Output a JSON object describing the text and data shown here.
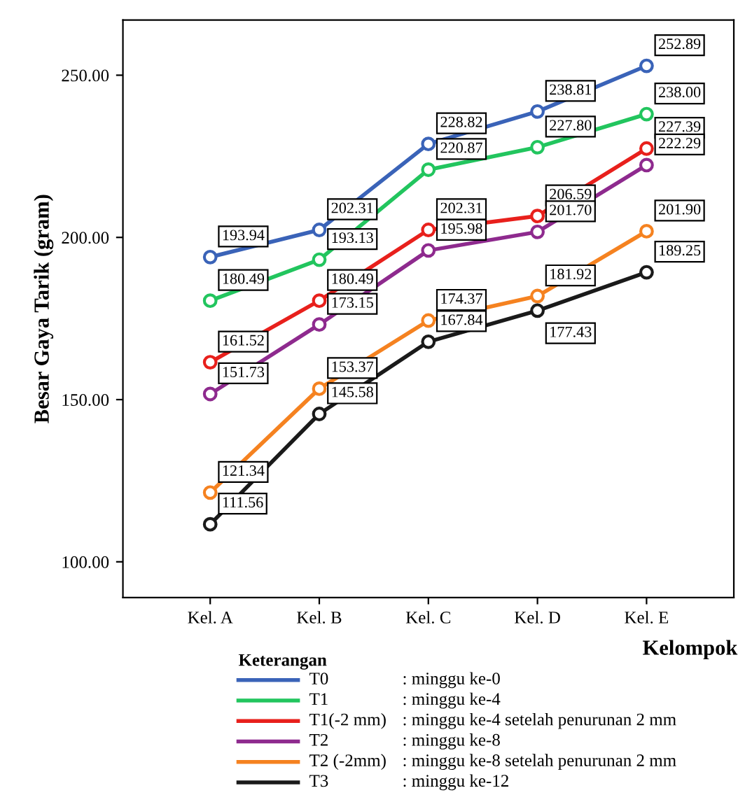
{
  "chart_data": {
    "type": "line",
    "xlabel": "Kelompok",
    "ylabel": "Besar Gaya Tarik (gram)",
    "legend_title": "Keterangan",
    "categories": [
      "Kel. A",
      "Kel. B",
      "Kel. C",
      "Kel. D",
      "Kel. E"
    ],
    "series": [
      {
        "name": "T0",
        "color": "#3a63b8",
        "values": [
          193.94,
          202.31,
          228.82,
          238.81,
          252.89
        ],
        "value_labels": [
          "193.94",
          "202.31",
          "228.82",
          "238.81",
          "252.89"
        ]
      },
      {
        "name": "T1",
        "color": "#22c55e",
        "values": [
          180.49,
          193.13,
          220.87,
          227.8,
          238.0
        ],
        "value_labels": [
          "180.49",
          "193.13",
          "220.87",
          "227.80",
          "238.00"
        ]
      },
      {
        "name": "T1(-2 mm)",
        "color": "#e8201c",
        "values": [
          161.52,
          180.49,
          202.31,
          206.59,
          227.39
        ],
        "value_labels": [
          "161.52",
          "180.49",
          "202.31",
          "206.59",
          "227.39"
        ]
      },
      {
        "name": "T2",
        "color": "#8e2a8e",
        "values": [
          151.73,
          173.15,
          195.98,
          201.7,
          222.29
        ],
        "value_labels": [
          "151.73",
          "173.15",
          "195.98",
          "201.70",
          "222.29"
        ]
      },
      {
        "name": "T2 (-2mm)",
        "color": "#f58220",
        "values": [
          121.34,
          153.37,
          174.37,
          181.92,
          201.9
        ],
        "value_labels": [
          "121.34",
          "153.37",
          "174.37",
          "181.92",
          "201.90"
        ]
      },
      {
        "name": "T3",
        "color": "#1a1a1a",
        "values": [
          111.56,
          145.58,
          167.84,
          177.43,
          189.25
        ],
        "value_labels": [
          "111.56",
          "145.58",
          "167.84",
          "177.43",
          "189.25"
        ]
      }
    ],
    "annotations": [
      ": minggu ke-0",
      ": minggu ke-4",
      ": minggu ke-4 setelah penurunan 2 mm",
      ": minggu ke-8",
      ": minggu ke-8 setelah penurunan 2 mm",
      ": minggu ke-12"
    ],
    "ylim": [
      89,
      267
    ],
    "yticks": [
      {
        "value": 100,
        "label": "100.00"
      },
      {
        "value": 150,
        "label": "150.00"
      },
      {
        "value": 200,
        "label": "200.00"
      },
      {
        "value": 250,
        "label": "250.00"
      }
    ],
    "marker": "circle",
    "grid": false,
    "legend": "bottom"
  }
}
